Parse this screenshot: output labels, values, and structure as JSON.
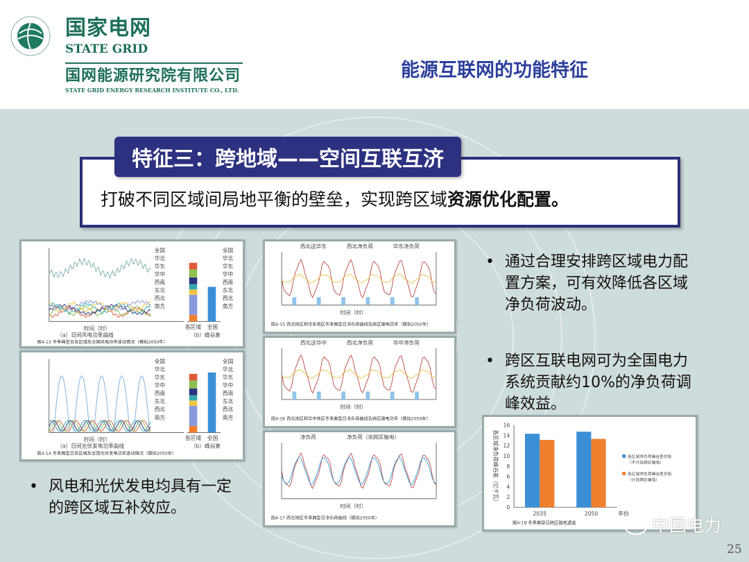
{
  "header": {
    "logo_cn": "国家电网",
    "logo_en": "STATE GRID",
    "company_cn": "国网能源研究院有限公司",
    "company_en": "STATE GRID ENERGY RESEARCH INSTITUTE CO., LTD.",
    "slide_title": "能源互联网的功能特征"
  },
  "feature": {
    "tab_label": "特征三：跨地域——空间互联互济",
    "text_plain": "打破不同区域间局地平衡的壁垒，实现跨区域",
    "text_bold": "资源优化配置。"
  },
  "figures": {
    "fig413_caption": "图4-13  冬季典型日各区域及全国风电功率波动情况（模拟2050年）",
    "fig413_sub_a": "（a）日间风电功率曲线",
    "fig413_sub_b": "（b）峰谷差",
    "fig414_caption": "图4-14  冬季典型日各区域及全国光伏发电功率波动情况（模拟2050年）",
    "fig414_sub_a": "（a）日间光伏发电功率曲线",
    "fig414_sub_b": "（b）峰谷差",
    "region_legend": [
      "全国",
      "华北",
      "华东",
      "华中",
      "西南",
      "东北",
      "西北",
      "南方"
    ],
    "stack_x": [
      "各区域",
      "全国"
    ],
    "xlabel_time": "时间（时）",
    "fig415_caption": "图4-15  西北地区和华东地区冬季典型日净负荷曲线及跨区输电功率（模拟2050年）",
    "fig415_legend": [
      "西北送华东",
      "西北净负荷",
      "华东净负荷"
    ],
    "fig416_caption": "图4-16  西北地区和华中地区冬季典型日净负荷曲线及跨区输电功率（模拟2050年）",
    "fig416_legend": [
      "西北送华中",
      "西北净负荷",
      "华中净负荷"
    ],
    "fig417_caption": "图4-17  西北地区冬季典型日净负荷曲线（模拟2050年）",
    "fig417_legend": [
      "净负荷",
      "净负荷（含跨区输电）"
    ],
    "fig418_caption": "图4-18  冬季典型日跨区输电通道"
  },
  "chart_data": {
    "type": "bar",
    "categories": [
      "2035",
      "2050"
    ],
    "xlabel": "年份",
    "ylabel": "各区域净负荷峰谷差（亿千瓦）",
    "ylim": [
      0,
      16
    ],
    "yticks": [
      0,
      2,
      4,
      6,
      8,
      10,
      12,
      14,
      16
    ],
    "legend_position": "right",
    "series": [
      {
        "name": "各区域净负荷峰谷差总和（不计及跨区输电）",
        "values": [
          14.3,
          14.7
        ],
        "color": "#3a8fd6"
      },
      {
        "name": "各区域净负荷峰谷差总和（计及跨区输电）",
        "values": [
          13.1,
          13.3
        ],
        "color": "#f07f2e"
      }
    ]
  },
  "bullets": {
    "right": [
      "通过合理安排跨区域电力配置方案，可有效降低各区域净负荷波动。",
      "跨区互联电网可为全国电力系统贡献约10%的净负荷调峰效益。"
    ],
    "left": "风电和光伏发电均具有一定的跨区域互补效应。",
    "marker": "•"
  },
  "watermark": "中国电力",
  "page_number": "25",
  "colors": {
    "navy": "#2e3180",
    "title_blue": "#2c3f9c",
    "logo_green": "#1d6f5a",
    "background": "#cfdcdc"
  }
}
